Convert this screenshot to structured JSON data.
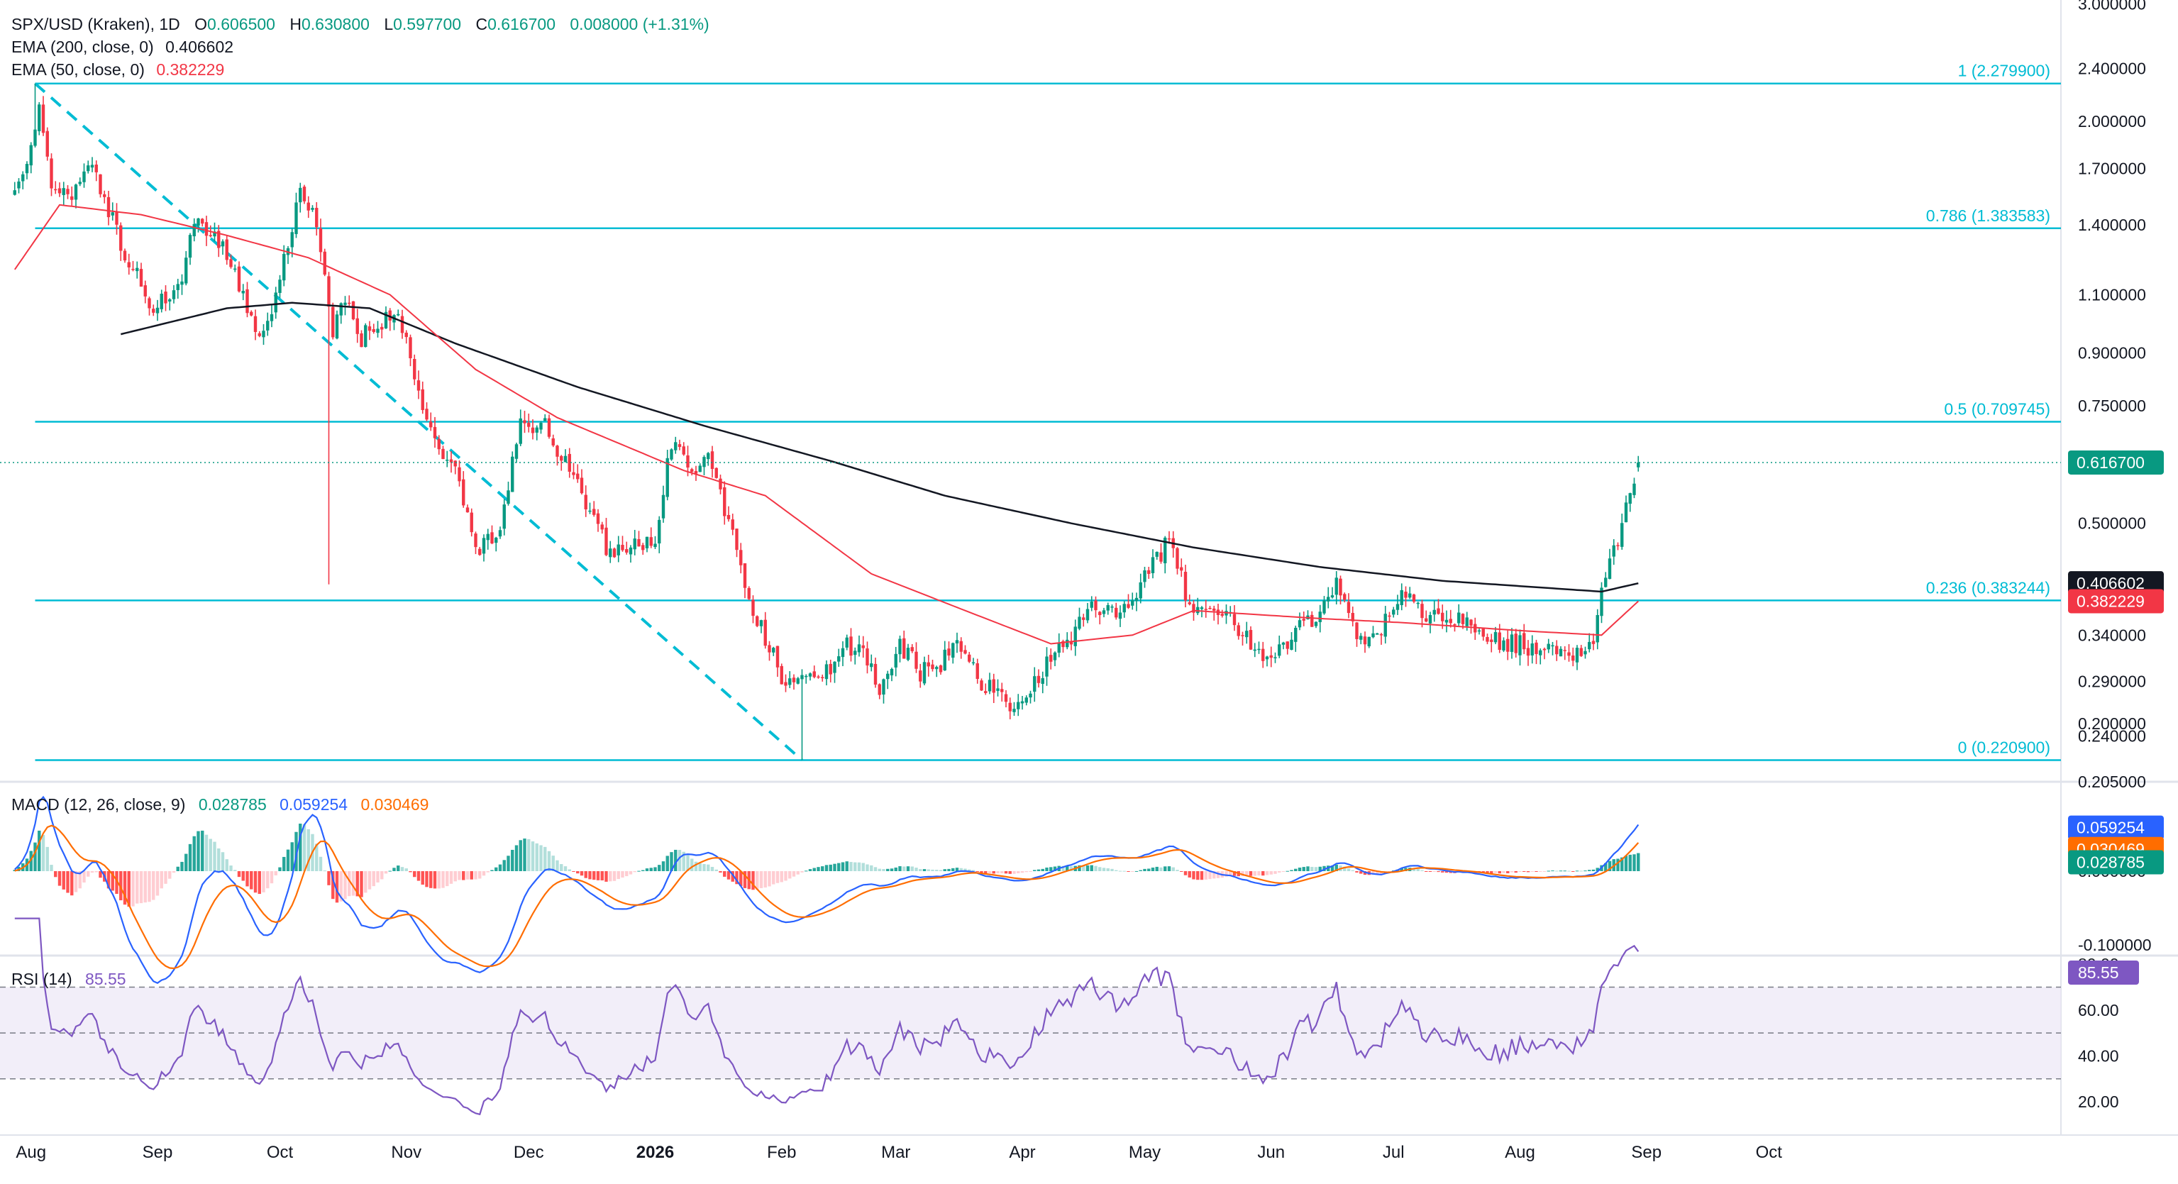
{
  "header": {
    "symbol": "SPX/USD (Kraken)",
    "interval": "1D",
    "open_label": "O",
    "open": "0.606500",
    "high_label": "H",
    "high": "0.630800",
    "low_label": "L",
    "low": "0.597700",
    "close_label": "C",
    "close": "0.616700",
    "change": "0.008000 (+1.31%)",
    "ema200_label": "EMA (200, close, 0)",
    "ema200_value": "0.406602",
    "ema50_label": "EMA (50, close, 0)",
    "ema50_value": "0.382229"
  },
  "macd_legend": {
    "label": "MACD (12, 26, close, 9)",
    "hist": "0.028785",
    "macd": "0.059254",
    "signal": "0.030469"
  },
  "rsi_legend": {
    "label": "RSI (14)",
    "value": "85.55"
  },
  "price_axis": {
    "ticks": [
      "3.000000",
      "2.400000",
      "2.000000",
      "1.700000",
      "1.400000",
      "1.100000",
      "0.900000",
      "0.750000",
      "0.500000",
      "0.340000",
      "0.290000",
      "0.240000",
      "0.205000"
    ],
    "tick_values": [
      3.0,
      2.4,
      2.0,
      1.7,
      1.4,
      1.1,
      0.9,
      0.75,
      0.5,
      0.34,
      0.29,
      0.24,
      0.205
    ],
    "badges": [
      {
        "text": "0.616700",
        "value": 0.6167,
        "color": "#089981"
      },
      {
        "text": "0.406602",
        "value": 0.4066,
        "color": "#131722"
      },
      {
        "text": "0.382229",
        "value": 0.3822,
        "color": "#f23645"
      }
    ]
  },
  "macd_axis": {
    "ticks": [
      "0.200000",
      "0.000000",
      "-0.100000"
    ],
    "tick_values": [
      0.2,
      0.0,
      -0.1
    ],
    "badges": [
      {
        "text": "0.059254",
        "value": 0.059,
        "color": "#2962ff"
      },
      {
        "text": "0.030469",
        "value": 0.03,
        "color": "#ff6d00"
      },
      {
        "text": "0.028785",
        "value": 0.012,
        "color": "#089981"
      }
    ]
  },
  "rsi_axis": {
    "ticks": [
      "80.00",
      "60.00",
      "40.00",
      "20.00"
    ],
    "tick_values": [
      80,
      60,
      40,
      20
    ],
    "badge": {
      "text": "85.55",
      "value": 85.55,
      "color": "#7e57c2"
    }
  },
  "time_axis": {
    "labels": [
      "Aug",
      "Sep",
      "Oct",
      "Nov",
      "Dec",
      "2026",
      "Feb",
      "Mar",
      "Apr",
      "May",
      "Jun",
      "Jul",
      "Aug",
      "Sep",
      "Oct"
    ],
    "day_index": [
      7,
      38,
      68,
      99,
      129,
      160,
      191,
      219,
      250,
      280,
      311,
      341,
      372,
      403,
      433
    ],
    "bold": [
      false,
      false,
      false,
      false,
      false,
      true,
      false,
      false,
      false,
      false,
      false,
      false,
      false,
      false,
      false
    ]
  },
  "fib_levels": [
    {
      "label": "1 (2.279900)",
      "value": 2.2799
    },
    {
      "label": "0.786 (1.383583)",
      "value": 1.383583
    },
    {
      "label": "0.5 (0.709745)",
      "value": 0.709745
    },
    {
      "label": "0.236 (0.383244)",
      "value": 0.383244
    },
    {
      "label": "0 (0.220900)",
      "value": 0.2209
    }
  ],
  "colors": {
    "up": "#089981",
    "down": "#f23645",
    "ema200": "#131722",
    "ema50": "#f23645",
    "fib": "#00bcd4",
    "macd": "#2962ff",
    "signal": "#ff6d00",
    "rsi": "#7e57c2",
    "rsi_band": "#ede7f6",
    "grid": "#e0e3eb",
    "text": "#131722"
  },
  "chart_data": {
    "type": "candlestick",
    "title": "SPX/USD (Kraken)",
    "interval": "1D",
    "x_axis": "date",
    "y_scale": "log",
    "ylim": [
      0.19,
      3.1
    ],
    "last_candle": {
      "open": 0.6065,
      "high": 0.6308,
      "low": 0.5977,
      "close": 0.6167
    },
    "close_anchors": [
      [
        "2025-07-25",
        1.55
      ],
      [
        "2025-07-29",
        1.85
      ],
      [
        "2025-07-31",
        2.1
      ],
      [
        "2025-08-03",
        1.6
      ],
      [
        "2025-08-08",
        1.55
      ],
      [
        "2025-08-13",
        1.75
      ],
      [
        "2025-08-20",
        1.3
      ],
      [
        "2025-08-28",
        1.05
      ],
      [
        "2025-09-04",
        1.15
      ],
      [
        "2025-09-07",
        1.4
      ],
      [
        "2025-09-14",
        1.3
      ],
      [
        "2025-09-20",
        1.05
      ],
      [
        "2025-09-24",
        0.95
      ],
      [
        "2025-09-30",
        1.3
      ],
      [
        "2025-10-03",
        1.55
      ],
      [
        "2025-10-06",
        1.45
      ],
      [
        "2025-10-08",
        1.25
      ],
      [
        "2025-10-11",
        0.95
      ],
      [
        "2025-10-14",
        1.1
      ],
      [
        "2025-10-18",
        0.95
      ],
      [
        "2025-10-23",
        1.0
      ],
      [
        "2025-10-26",
        1.05
      ],
      [
        "2025-10-31",
        0.85
      ],
      [
        "2025-11-05",
        0.65
      ],
      [
        "2025-11-10",
        0.6
      ],
      [
        "2025-11-16",
        0.45
      ],
      [
        "2025-11-21",
        0.5
      ],
      [
        "2025-11-26",
        0.7
      ],
      [
        "2025-12-02",
        0.7
      ],
      [
        "2025-12-08",
        0.6
      ],
      [
        "2025-12-13",
        0.52
      ],
      [
        "2025-12-18",
        0.45
      ],
      [
        "2025-12-24",
        0.46
      ],
      [
        "2025-12-29",
        0.48
      ],
      [
        "2026-01-02",
        0.66
      ],
      [
        "2026-01-07",
        0.6
      ],
      [
        "2026-01-11",
        0.62
      ],
      [
        "2026-01-16",
        0.5
      ],
      [
        "2026-01-21",
        0.38
      ],
      [
        "2026-01-26",
        0.33
      ],
      [
        "2026-01-29",
        0.29
      ],
      [
        "2026-02-03",
        0.3
      ],
      [
        "2026-02-08",
        0.29
      ],
      [
        "2026-02-13",
        0.33
      ],
      [
        "2026-02-18",
        0.32
      ],
      [
        "2026-02-22",
        0.28
      ],
      [
        "2026-02-27",
        0.33
      ],
      [
        "2026-03-04",
        0.3
      ],
      [
        "2026-03-09",
        0.31
      ],
      [
        "2026-03-14",
        0.33
      ],
      [
        "2026-03-19",
        0.29
      ],
      [
        "2026-03-25",
        0.27
      ],
      [
        "2026-03-30",
        0.27
      ],
      [
        "2026-04-04",
        0.31
      ],
      [
        "2026-04-09",
        0.33
      ],
      [
        "2026-04-14",
        0.37
      ],
      [
        "2026-04-19",
        0.37
      ],
      [
        "2026-04-24",
        0.38
      ],
      [
        "2026-04-29",
        0.43
      ],
      [
        "2026-05-04",
        0.47
      ],
      [
        "2026-05-09",
        0.38
      ],
      [
        "2026-05-14",
        0.36
      ],
      [
        "2026-05-19",
        0.36
      ],
      [
        "2026-05-24",
        0.33
      ],
      [
        "2026-05-28",
        0.31
      ],
      [
        "2026-06-01",
        0.33
      ],
      [
        "2026-06-06",
        0.35
      ],
      [
        "2026-06-10",
        0.37
      ],
      [
        "2026-06-14",
        0.41
      ],
      [
        "2026-06-18",
        0.35
      ],
      [
        "2026-06-22",
        0.33
      ],
      [
        "2026-06-26",
        0.36
      ],
      [
        "2026-06-30",
        0.4
      ],
      [
        "2026-07-04",
        0.37
      ],
      [
        "2026-07-09",
        0.36
      ],
      [
        "2026-07-14",
        0.36
      ],
      [
        "2026-07-19",
        0.34
      ],
      [
        "2026-07-24",
        0.33
      ],
      [
        "2026-07-29",
        0.33
      ],
      [
        "2026-08-03",
        0.32
      ],
      [
        "2026-08-08",
        0.325
      ],
      [
        "2026-08-13",
        0.32
      ],
      [
        "2026-08-16",
        0.34
      ],
      [
        "2026-08-18",
        0.39
      ],
      [
        "2026-08-20",
        0.45
      ],
      [
        "2026-08-22",
        0.47
      ],
      [
        "2026-08-25",
        0.56
      ],
      [
        "2026-08-27",
        0.6167
      ]
    ],
    "ema200_anchors": [
      [
        "2025-08-20",
        0.96
      ],
      [
        "2025-09-15",
        1.05
      ],
      [
        "2025-10-01",
        1.07
      ],
      [
        "2025-10-20",
        1.05
      ],
      [
        "2025-11-10",
        0.93
      ],
      [
        "2025-12-10",
        0.8
      ],
      [
        "2026-01-10",
        0.7
      ],
      [
        "2026-02-10",
        0.62
      ],
      [
        "2026-03-10",
        0.55
      ],
      [
        "2026-04-10",
        0.5
      ],
      [
        "2026-05-10",
        0.46
      ],
      [
        "2026-06-10",
        0.43
      ],
      [
        "2026-07-10",
        0.41
      ],
      [
        "2026-08-18",
        0.395
      ],
      [
        "2026-08-27",
        0.4066
      ]
    ],
    "ema50_anchors": [
      [
        "2025-07-25",
        1.2
      ],
      [
        "2025-08-05",
        1.5
      ],
      [
        "2025-08-25",
        1.45
      ],
      [
        "2025-09-15",
        1.35
      ],
      [
        "2025-10-05",
        1.25
      ],
      [
        "2025-10-25",
        1.1
      ],
      [
        "2025-11-15",
        0.85
      ],
      [
        "2025-12-05",
        0.72
      ],
      [
        "2026-01-05",
        0.6
      ],
      [
        "2026-01-25",
        0.55
      ],
      [
        "2026-02-20",
        0.42
      ],
      [
        "2026-03-15",
        0.37
      ],
      [
        "2026-04-05",
        0.33
      ],
      [
        "2026-04-25",
        0.34
      ],
      [
        "2026-05-10",
        0.37
      ],
      [
        "2026-06-10",
        0.36
      ],
      [
        "2026-06-30",
        0.355
      ],
      [
        "2026-07-30",
        0.345
      ],
      [
        "2026-08-18",
        0.34
      ],
      [
        "2026-08-27",
        0.3822
      ]
    ],
    "macd_last": {
      "macd": 0.059254,
      "signal": 0.030469,
      "histogram": 0.028785
    },
    "rsi_last": 85.55,
    "rsi_bands": [
      70,
      50,
      30
    ]
  }
}
